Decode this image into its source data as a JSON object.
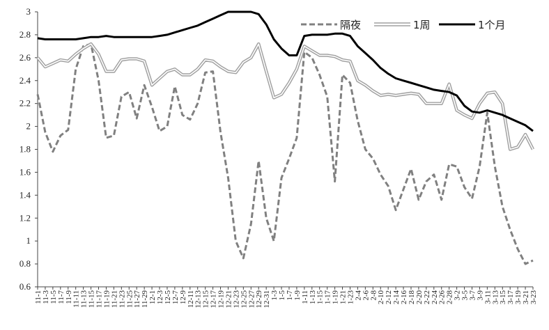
{
  "chart_data": {
    "type": "line",
    "title": "",
    "xlabel": "",
    "ylabel": "",
    "ylim": [
      0.6,
      3.0
    ],
    "yticks": [
      "3",
      "2.8",
      "2.6",
      "2.4",
      "2.2",
      "2",
      "1.8",
      "1.6",
      "1.4",
      "1.2",
      "1",
      "0.8",
      "0.6"
    ],
    "grid": false,
    "legend_position": "top-right",
    "x_tick_labels": [
      "11-1",
      "11-3",
      "11-5",
      "11-7",
      "11-9",
      "11-11",
      "11-13",
      "11-15",
      "11-17",
      "11-19",
      "11-21",
      "11-23",
      "11-25",
      "11-27",
      "11-29",
      "12-1",
      "12-3",
      "12-5",
      "12-7",
      "12-9",
      "12-11",
      "12-13",
      "12-15",
      "12-17",
      "12-19",
      "12-21",
      "12-23",
      "12-25",
      "12-27",
      "12-29",
      "12-31",
      "1-3",
      "1-5",
      "1-7",
      "1-9",
      "1-11",
      "1-13",
      "1-15",
      "1-17",
      "1-19",
      "1-21",
      "1-23",
      "2-4",
      "2-6",
      "2-8",
      "2-10",
      "2-12",
      "2-14",
      "2-16",
      "2-18",
      "2-20",
      "2-22",
      "2-24",
      "2-26",
      "2-28",
      "3-2",
      "3-5",
      "3-7",
      "3-9",
      "3-11",
      "3-13",
      "3-15",
      "3-17",
      "3-19",
      "3-21",
      "3-23"
    ],
    "series": [
      {
        "name": "隔夜",
        "color": "#808080",
        "dash": "dashed",
        "values": [
          2.28,
          1.95,
          1.78,
          1.92,
          1.97,
          2.5,
          2.7,
          2.72,
          2.4,
          1.9,
          1.92,
          2.26,
          2.3,
          2.07,
          2.36,
          2.17,
          1.96,
          2.0,
          2.35,
          2.1,
          2.06,
          2.2,
          2.47,
          2.48,
          1.95,
          1.55,
          1.0,
          0.85,
          1.15,
          1.7,
          1.2,
          1.0,
          1.55,
          1.72,
          1.9,
          2.65,
          2.6,
          2.45,
          2.26,
          1.52,
          2.45,
          2.38,
          2.05,
          1.8,
          1.72,
          1.58,
          1.48,
          1.27,
          1.45,
          1.63,
          1.36,
          1.52,
          1.58,
          1.36,
          1.67,
          1.65,
          1.47,
          1.37,
          1.65,
          2.12,
          1.65,
          1.3,
          1.1,
          0.93,
          0.8,
          0.83
        ]
      },
      {
        "name": "1周",
        "color": "#a0a0a0",
        "dash": "double",
        "values": [
          2.6,
          2.52,
          2.55,
          2.58,
          2.57,
          2.63,
          2.68,
          2.72,
          2.63,
          2.48,
          2.48,
          2.58,
          2.59,
          2.59,
          2.57,
          2.36,
          2.42,
          2.48,
          2.5,
          2.45,
          2.45,
          2.5,
          2.58,
          2.57,
          2.52,
          2.48,
          2.47,
          2.56,
          2.6,
          2.72,
          2.48,
          2.25,
          2.28,
          2.38,
          2.5,
          2.7,
          2.66,
          2.62,
          2.62,
          2.61,
          2.58,
          2.57,
          2.4,
          2.36,
          2.31,
          2.27,
          2.28,
          2.27,
          2.28,
          2.29,
          2.28,
          2.2,
          2.2,
          2.2,
          2.37,
          2.14,
          2.1,
          2.07,
          2.2,
          2.29,
          2.3,
          2.2,
          1.8,
          1.82,
          1.93,
          1.8
        ]
      },
      {
        "name": "1个月",
        "color": "#000000",
        "dash": "solid",
        "values": [
          2.77,
          2.76,
          2.76,
          2.76,
          2.76,
          2.76,
          2.77,
          2.78,
          2.78,
          2.79,
          2.78,
          2.78,
          2.78,
          2.78,
          2.78,
          2.78,
          2.79,
          2.8,
          2.82,
          2.84,
          2.86,
          2.88,
          2.91,
          2.94,
          2.97,
          3.0,
          3.0,
          3.0,
          3.0,
          2.98,
          2.89,
          2.76,
          2.68,
          2.62,
          2.62,
          2.79,
          2.8,
          2.8,
          2.8,
          2.81,
          2.81,
          2.79,
          2.7,
          2.64,
          2.58,
          2.51,
          2.46,
          2.42,
          2.4,
          2.38,
          2.36,
          2.34,
          2.32,
          2.31,
          2.3,
          2.27,
          2.18,
          2.13,
          2.12,
          2.14,
          2.12,
          2.1,
          2.07,
          2.04,
          2.01,
          1.96
        ]
      }
    ]
  }
}
